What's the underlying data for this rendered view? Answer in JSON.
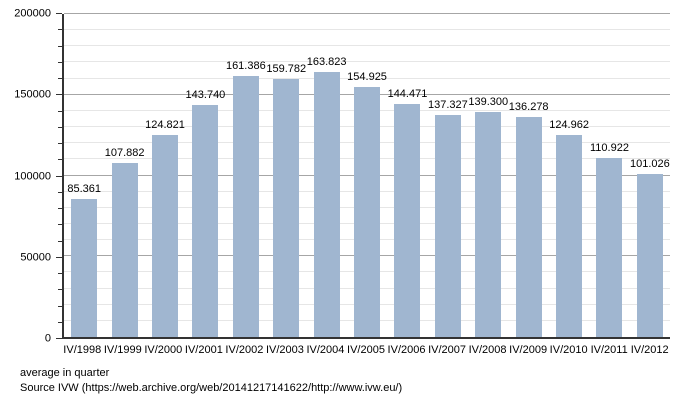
{
  "chart_data": {
    "type": "bar",
    "title": "",
    "xlabel": "",
    "ylabel": "",
    "categories": [
      "IV/1998",
      "IV/1999",
      "IV/2000",
      "IV/2001",
      "IV/2002",
      "IV/2003",
      "IV/2004",
      "IV/2005",
      "IV/2006",
      "IV/2007",
      "IV/2008",
      "IV/2009",
      "IV/2010",
      "IV/2011",
      "IV/2012"
    ],
    "values": [
      85361,
      107882,
      124821,
      143740,
      161386,
      159782,
      163823,
      154925,
      144471,
      137327,
      139300,
      136278,
      124962,
      110922,
      101026
    ],
    "value_labels": [
      "85.361",
      "107.882",
      "124.821",
      "143.740",
      "161.386",
      "159.782",
      "163.823",
      "154.925",
      "144.471",
      "137.327",
      "139.300",
      "136.278",
      "124.962",
      "110.922",
      "101.026"
    ],
    "ylim": [
      0,
      200000
    ],
    "major_step": 50000,
    "minor_step": 10000,
    "ytick_labels": [
      "0",
      "50000",
      "100000",
      "150000",
      "200000"
    ],
    "grid": true,
    "legend": false,
    "bar_color": "#a0b6d0",
    "major_gridline_color": "#a6a6a6",
    "minor_gridline_color": "#e6e6e6",
    "axis_color": "#333333",
    "text_color": "#000000"
  },
  "footer": {
    "note": "average in quarter",
    "source": "Source IVW (https://web.archive.org/web/20141217141622/http://www.ivw.eu/)"
  }
}
